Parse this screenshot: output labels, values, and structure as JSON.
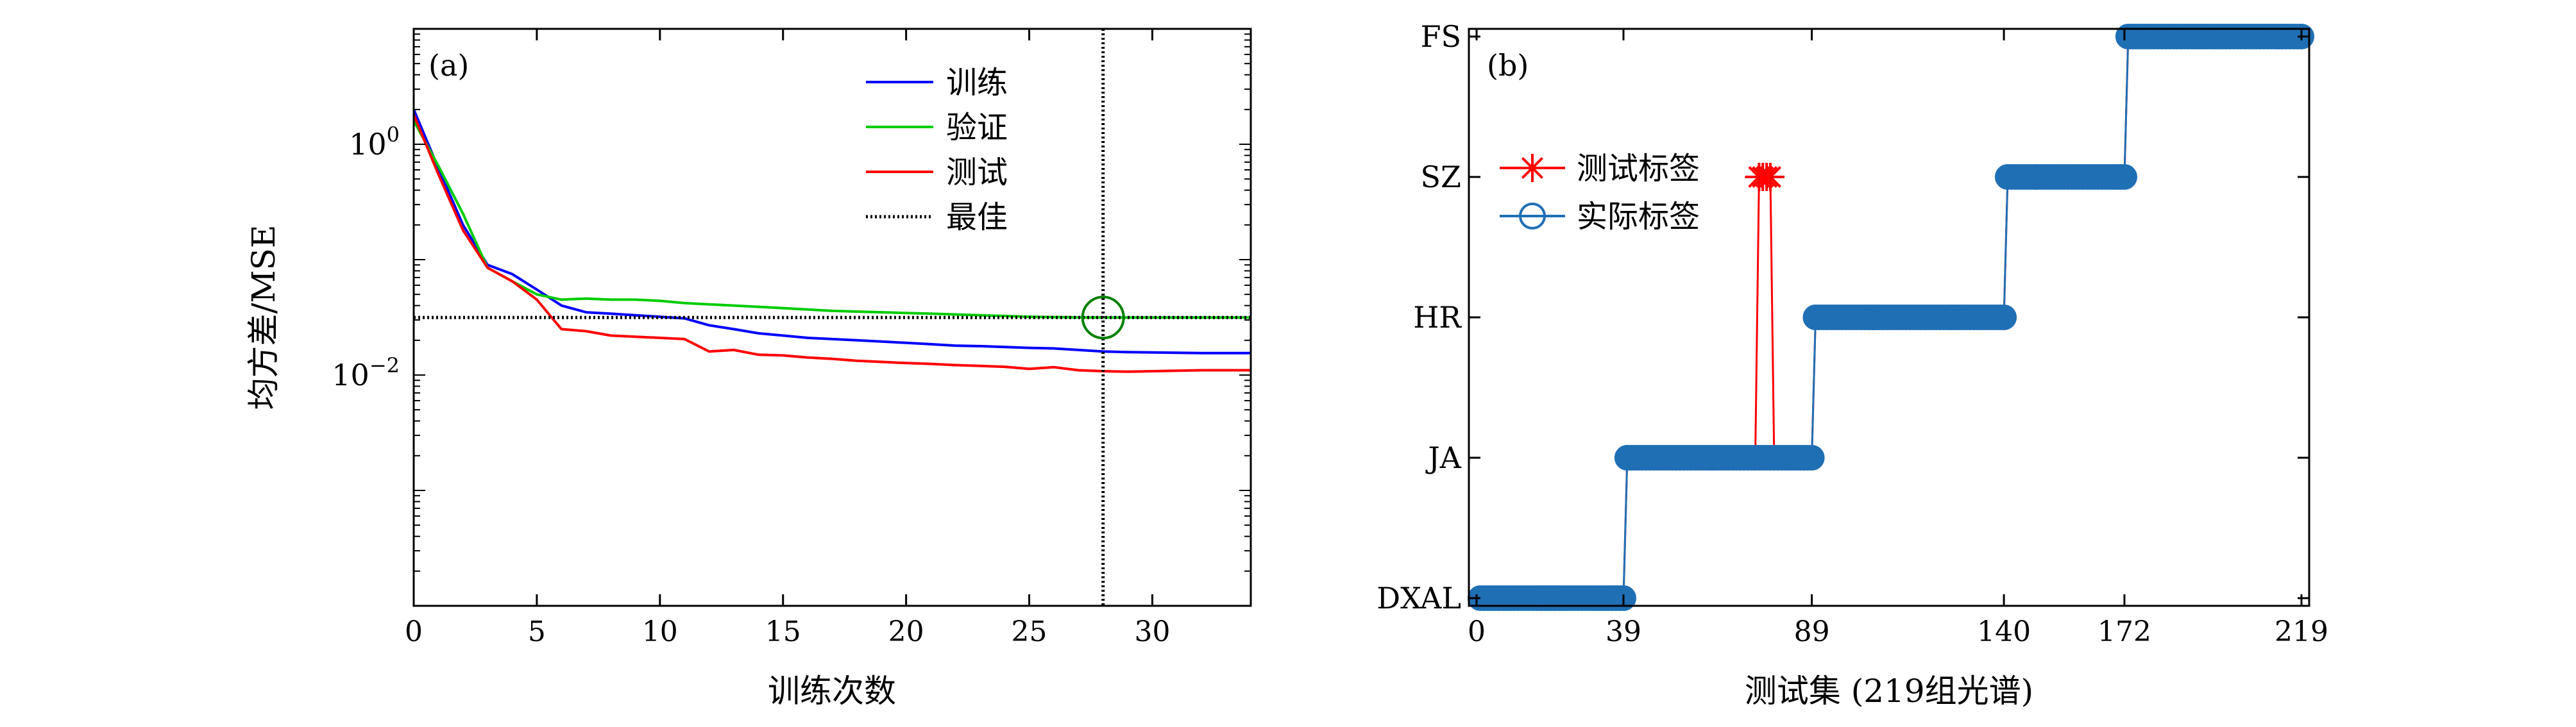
{
  "chart_data": [
    {
      "type": "line",
      "panel_label": "(a)",
      "xlabel": "训练次数",
      "ylabel": "均方差/MSE",
      "xlim": [
        0,
        34
      ],
      "ylim": [
        0.0001,
        10
      ],
      "yscale": "log",
      "xticks": [
        0,
        5,
        10,
        15,
        20,
        25,
        30
      ],
      "yticks": [
        {
          "value": 1,
          "label": "10^0",
          "base": "10",
          "exp": "0"
        },
        {
          "value": 0.01,
          "label": "10^-2",
          "base": "10",
          "exp": "−2"
        }
      ],
      "grid": false,
      "legend_position": "top-right",
      "series": [
        {
          "name": "训练",
          "color": "#0000ff",
          "x": [
            0,
            1,
            2,
            3,
            4,
            5,
            6,
            7,
            8,
            9,
            10,
            11,
            12,
            13,
            14,
            15,
            16,
            17,
            18,
            19,
            20,
            21,
            22,
            23,
            24,
            25,
            26,
            27,
            28,
            29,
            30,
            31,
            32,
            33,
            34
          ],
          "y": [
            2.0,
            0.62,
            0.2,
            0.09,
            0.075,
            0.055,
            0.04,
            0.035,
            0.034,
            0.033,
            0.032,
            0.031,
            0.027,
            0.025,
            0.023,
            0.022,
            0.021,
            0.0205,
            0.02,
            0.0195,
            0.019,
            0.0185,
            0.018,
            0.0178,
            0.0175,
            0.0172,
            0.017,
            0.0165,
            0.016,
            0.0158,
            0.0157,
            0.0156,
            0.0155,
            0.0155,
            0.0155
          ]
        },
        {
          "name": "验证",
          "color": "#00cc00",
          "x": [
            0,
            1,
            2,
            3,
            4,
            5,
            6,
            7,
            8,
            9,
            10,
            11,
            12,
            13,
            14,
            15,
            16,
            17,
            18,
            19,
            20,
            21,
            22,
            23,
            24,
            25,
            26,
            27,
            28,
            29,
            30,
            31,
            32,
            33,
            34
          ],
          "y": [
            1.6,
            0.65,
            0.25,
            0.085,
            0.065,
            0.05,
            0.045,
            0.046,
            0.045,
            0.045,
            0.044,
            0.042,
            0.041,
            0.04,
            0.039,
            0.038,
            0.037,
            0.036,
            0.0355,
            0.035,
            0.0345,
            0.034,
            0.0335,
            0.033,
            0.0325,
            0.032,
            0.0318,
            0.0316,
            0.0315,
            0.0315,
            0.0315,
            0.0315,
            0.0315,
            0.0315,
            0.0315
          ]
        },
        {
          "name": "测试",
          "color": "#ff0000",
          "x": [
            0,
            1,
            2,
            3,
            4,
            5,
            6,
            7,
            8,
            9,
            10,
            11,
            12,
            13,
            14,
            15,
            16,
            17,
            18,
            19,
            20,
            21,
            22,
            23,
            24,
            25,
            26,
            27,
            28,
            29,
            30,
            31,
            32,
            33,
            34
          ],
          "y": [
            1.8,
            0.55,
            0.18,
            0.085,
            0.065,
            0.045,
            0.025,
            0.024,
            0.022,
            0.0215,
            0.021,
            0.0205,
            0.016,
            0.0165,
            0.015,
            0.0148,
            0.0142,
            0.0138,
            0.0133,
            0.013,
            0.0127,
            0.0125,
            0.0122,
            0.012,
            0.0118,
            0.0113,
            0.0117,
            0.011,
            0.0108,
            0.0107,
            0.0108,
            0.0109,
            0.011,
            0.011,
            0.011
          ]
        },
        {
          "name": "最佳",
          "color": "#000000",
          "style": "dotted",
          "best_epoch": 28,
          "best_value": 0.0315
        }
      ],
      "annotations": [
        {
          "type": "circle",
          "x": 28,
          "y": 0.0315,
          "color": "#008000"
        }
      ]
    },
    {
      "type": "scatter",
      "panel_label": "(b)",
      "xlabel": "测试集 (219组光谱)",
      "ylabel": "",
      "xlim": [
        0,
        219
      ],
      "xticks": [
        0,
        39,
        89,
        140,
        172,
        219
      ],
      "categories": [
        "DXAL",
        "JA",
        "HR",
        "SZ",
        "FS"
      ],
      "legend_position": "top-left",
      "segments": [
        {
          "from": 1,
          "to": 39,
          "class": 0
        },
        {
          "from": 40,
          "to": 89,
          "class": 1
        },
        {
          "from": 90,
          "to": 140,
          "class": 2
        },
        {
          "from": 141,
          "to": 172,
          "class": 3
        },
        {
          "from": 173,
          "to": 219,
          "class": 4
        }
      ],
      "misclassified": [
        {
          "x": 75,
          "true_class": 1,
          "pred_class": 3
        },
        {
          "x": 76,
          "true_class": 1,
          "pred_class": 3
        },
        {
          "x": 77,
          "true_class": 1,
          "pred_class": 3
        },
        {
          "x": 78,
          "true_class": 1,
          "pred_class": 3
        }
      ],
      "series": [
        {
          "name": "测试标签",
          "color": "#ff0000",
          "marker": "star"
        },
        {
          "name": "实际标签",
          "color": "#1f6fb5",
          "marker": "circle"
        }
      ]
    }
  ]
}
